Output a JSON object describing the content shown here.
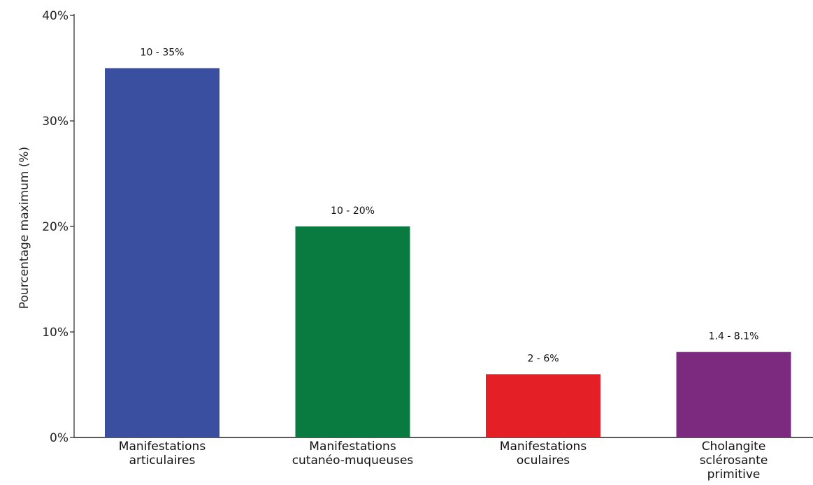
{
  "chart_data": {
    "type": "bar",
    "title": "",
    "xlabel": "",
    "ylabel": "Pourcentage maximum (%)",
    "ylim": [
      0,
      40
    ],
    "yticks": [
      0,
      10,
      20,
      30,
      40
    ],
    "ytick_labels": [
      "0%",
      "10%",
      "20%",
      "30%",
      "40%"
    ],
    "categories": [
      [
        "Manifestations",
        "articulaires"
      ],
      [
        "Manifestations",
        "cutanéo-muqueuses"
      ],
      [
        "Manifestations",
        "oculaires"
      ],
      [
        "Cholangite",
        "sclérosante",
        "primitive"
      ]
    ],
    "values": [
      35,
      20,
      6,
      8.1
    ],
    "data_labels": [
      "10 - 35%",
      "10 - 20%",
      "2 - 6%",
      "1.4 - 8.1%"
    ],
    "colors": [
      "#3a4fa0",
      "#0a7b40",
      "#e41f26",
      "#7b2a7f"
    ],
    "grid": false,
    "legend": "none"
  }
}
